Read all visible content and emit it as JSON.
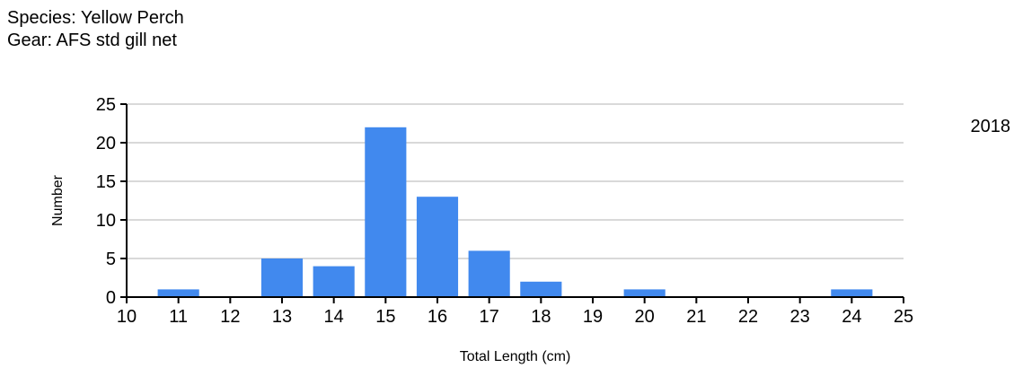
{
  "header": {
    "species": "Species: Yellow Perch",
    "gear": "Gear: AFS std gill net"
  },
  "chart_data": {
    "type": "bar",
    "title": "",
    "year_label": "2018",
    "xlabel": "Total Length (cm)",
    "ylabel": "Number",
    "xlim": [
      10,
      25
    ],
    "ylim": [
      0,
      25
    ],
    "xticks": [
      10,
      11,
      12,
      13,
      14,
      15,
      16,
      17,
      18,
      19,
      20,
      21,
      22,
      23,
      24,
      25
    ],
    "yticks": [
      0,
      5,
      10,
      15,
      20,
      25
    ],
    "grid": true,
    "bar_color": "#4189EE",
    "grid_color": "#d9d9d9",
    "x": [
      11,
      13,
      14,
      15,
      16,
      17,
      18,
      20,
      24
    ],
    "values": [
      1,
      5,
      4,
      22,
      13,
      6,
      2,
      1,
      1
    ]
  }
}
